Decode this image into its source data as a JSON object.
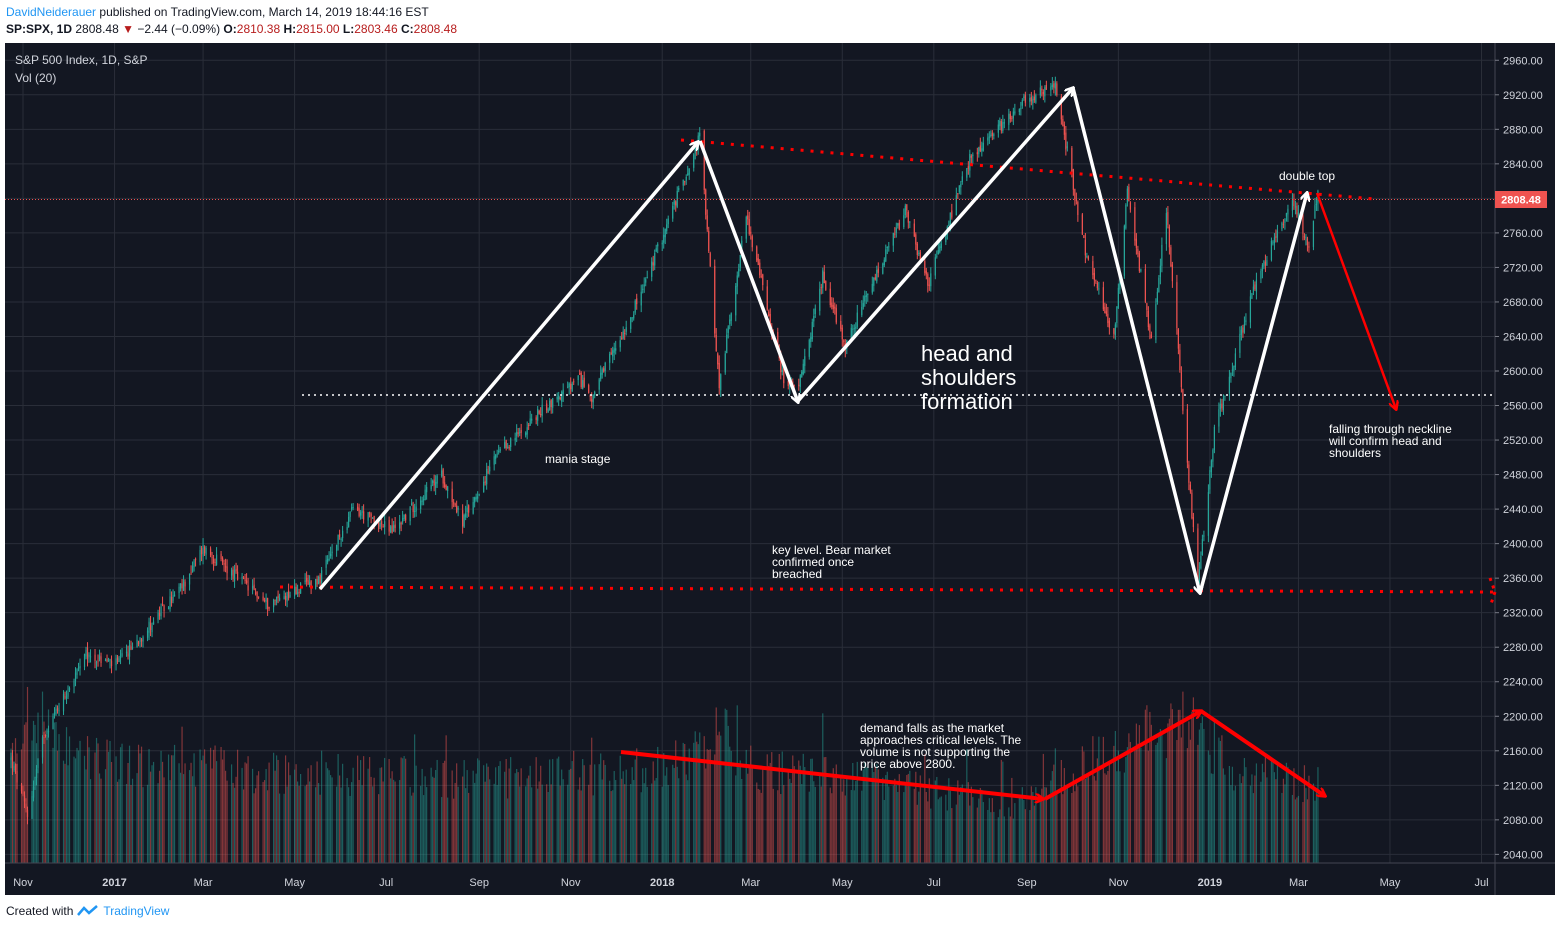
{
  "header": {
    "author": "DavidNeiderauer",
    "published": "published on TradingView.com, March 14, 2019 18:44:16 EST",
    "symbol": "SP:SPX, 1D",
    "last": "2808.48",
    "arrow": "▼",
    "change": "−2.44 (−0.09%)",
    "o_label": "O:",
    "o": "2810.38",
    "h_label": "H:",
    "h": "2815.00",
    "l_label": "L:",
    "l": "2803.46",
    "c_label": "C:",
    "c": "2808.48"
  },
  "pane": {
    "title": "S&P 500 Index, 1D, S&P",
    "vol": "Vol (20)",
    "price_tag": "2808.48"
  },
  "footer": {
    "created_with": "Created with",
    "brand": "TradingView"
  },
  "annotations": {
    "mania": "mania stage",
    "head1": "head and",
    "head2": "shoulders",
    "head3": "formation",
    "double_top": "double top",
    "key1": "key level. Bear market",
    "key2": "confirmed once",
    "key3": "breached",
    "fall1": "falling through neckline",
    "fall2": "will confirm head and",
    "fall3": "shoulders",
    "demand1": "demand falls as the market",
    "demand2": "approaches critical levels. The",
    "demand3": "volume is not supporting the",
    "demand4": "price above 2800."
  },
  "colors": {
    "background": "#131722",
    "up": "#26a69a",
    "down": "#ef5350",
    "annotation_red": "#ff0000",
    "annotation_white": "#ffffff",
    "grid": "#2a2e39"
  },
  "chart_data": {
    "type": "candlestick",
    "title": "S&P 500 Index, 1D, S&P",
    "ylim": [
      2030,
      2980
    ],
    "y_ticks": [
      2040,
      2080,
      2120,
      2160,
      2200,
      2240,
      2280,
      2320,
      2360,
      2400,
      2440,
      2480,
      2520,
      2560,
      2600,
      2640,
      2680,
      2720,
      2760,
      2800,
      2840,
      2880,
      2920,
      2960
    ],
    "x_ticks": [
      "Nov",
      "2017",
      "Mar",
      "May",
      "Jul",
      "Sep",
      "Nov",
      "2018",
      "Mar",
      "May",
      "Jul",
      "Sep",
      "Nov",
      "2019",
      "Mar",
      "May",
      "Jul"
    ],
    "x_range": [
      "2016-10-20",
      "2019-07-10"
    ],
    "x_tick_dates": [
      "2016-11-01",
      "2017-01-01",
      "2017-03-01",
      "2017-05-01",
      "2017-07-01",
      "2017-09-01",
      "2017-11-01",
      "2018-01-01",
      "2018-03-01",
      "2018-05-01",
      "2018-07-01",
      "2018-09-01",
      "2018-11-01",
      "2019-01-01",
      "2019-03-01",
      "2019-05-01",
      "2019-07-01"
    ],
    "last_close": 2808.48,
    "price_path": [
      [
        "2016-10-24",
        2150
      ],
      [
        "2016-11-04",
        2085
      ],
      [
        "2016-11-15",
        2180
      ],
      [
        "2016-12-13",
        2270
      ],
      [
        "2017-01-03",
        2260
      ],
      [
        "2017-02-15",
        2350
      ],
      [
        "2017-03-01",
        2395
      ],
      [
        "2017-04-13",
        2330
      ],
      [
        "2017-05-18",
        2360
      ],
      [
        "2017-06-09",
        2440
      ],
      [
        "2017-07-05",
        2415
      ],
      [
        "2017-08-07",
        2480
      ],
      [
        "2017-08-21",
        2425
      ],
      [
        "2017-09-12",
        2500
      ],
      [
        "2017-10-13",
        2555
      ],
      [
        "2017-11-07",
        2590
      ],
      [
        "2017-11-15",
        2570
      ],
      [
        "2017-12-18",
        2690
      ],
      [
        "2018-01-26",
        2872
      ],
      [
        "2018-02-08",
        2582
      ],
      [
        "2018-02-26",
        2780
      ],
      [
        "2018-03-23",
        2590
      ],
      [
        "2018-04-02",
        2580
      ],
      [
        "2018-04-18",
        2710
      ],
      [
        "2018-05-03",
        2630
      ],
      [
        "2018-06-12",
        2785
      ],
      [
        "2018-06-27",
        2700
      ],
      [
        "2018-07-25",
        2845
      ],
      [
        "2018-08-29",
        2912
      ],
      [
        "2018-09-20",
        2930
      ],
      [
        "2018-10-11",
        2730
      ],
      [
        "2018-10-29",
        2640
      ],
      [
        "2018-11-07",
        2810
      ],
      [
        "2018-11-23",
        2635
      ],
      [
        "2018-12-03",
        2790
      ],
      [
        "2018-12-24",
        2350
      ],
      [
        "2019-01-04",
        2530
      ],
      [
        "2019-01-31",
        2700
      ],
      [
        "2019-02-25",
        2800
      ],
      [
        "2019-03-08",
        2745
      ],
      [
        "2019-03-14",
        2808.48
      ]
    ],
    "volume_series": {
      "name": "Vol (20)",
      "path": [
        [
          "2016-10-24",
          1.0
        ],
        [
          "2016-11-09",
          1.35
        ],
        [
          "2016-12-15",
          1.05
        ],
        [
          "2017-02-01",
          0.92
        ],
        [
          "2017-06-01",
          0.85
        ],
        [
          "2017-09-01",
          0.8
        ],
        [
          "2017-12-01",
          0.85
        ],
        [
          "2018-01-15",
          0.95
        ],
        [
          "2018-02-06",
          1.3
        ],
        [
          "2018-03-01",
          0.9
        ],
        [
          "2018-06-01",
          0.75
        ],
        [
          "2018-08-24",
          0.55
        ],
        [
          "2018-10-11",
          0.95
        ],
        [
          "2018-12-21",
          1.4
        ],
        [
          "2019-01-15",
          0.85
        ],
        [
          "2019-03-14",
          0.75
        ]
      ]
    }
  }
}
